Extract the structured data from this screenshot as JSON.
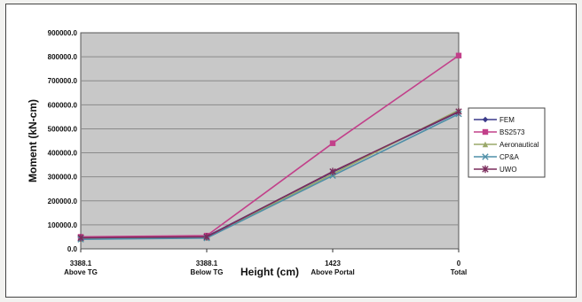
{
  "chart_data": {
    "type": "line",
    "title": "",
    "xlabel": "Height (cm)",
    "ylabel": "Moment (kN-cm)",
    "ylim": [
      0,
      900000
    ],
    "yticks": [
      "0.0",
      "100000.0",
      "200000.0",
      "300000.0",
      "400000.0",
      "500000.0",
      "600000.0",
      "700000.0",
      "800000.0",
      "900000.0"
    ],
    "categories": [
      {
        "value": "3388.1",
        "sub": "Above TG"
      },
      {
        "value": "3388.1",
        "sub": "Below TG"
      },
      {
        "value": "1423",
        "sub": "Above Portal"
      },
      {
        "value": "0",
        "sub": "Total"
      }
    ],
    "grid": true,
    "legend": "right",
    "plot_background": "#c8c8c8",
    "series": [
      {
        "name": "FEM",
        "color": "#3b3a8a",
        "marker": "diamond",
        "values": [
          45000,
          52000,
          320000,
          570000
        ]
      },
      {
        "name": "BS2573",
        "color": "#c2408a",
        "marker": "square",
        "values": [
          50000,
          55000,
          440000,
          805000
        ]
      },
      {
        "name": "Aeronautical",
        "color": "#9aa86a",
        "marker": "triangle",
        "values": [
          42000,
          47000,
          312000,
          578000
        ]
      },
      {
        "name": "CP&A",
        "color": "#4f8fa8",
        "marker": "x",
        "values": [
          40000,
          45000,
          305000,
          562000
        ]
      },
      {
        "name": "UWO",
        "color": "#7a2c5c",
        "marker": "asterisk",
        "values": [
          46000,
          50000,
          322000,
          572000
        ]
      }
    ]
  }
}
